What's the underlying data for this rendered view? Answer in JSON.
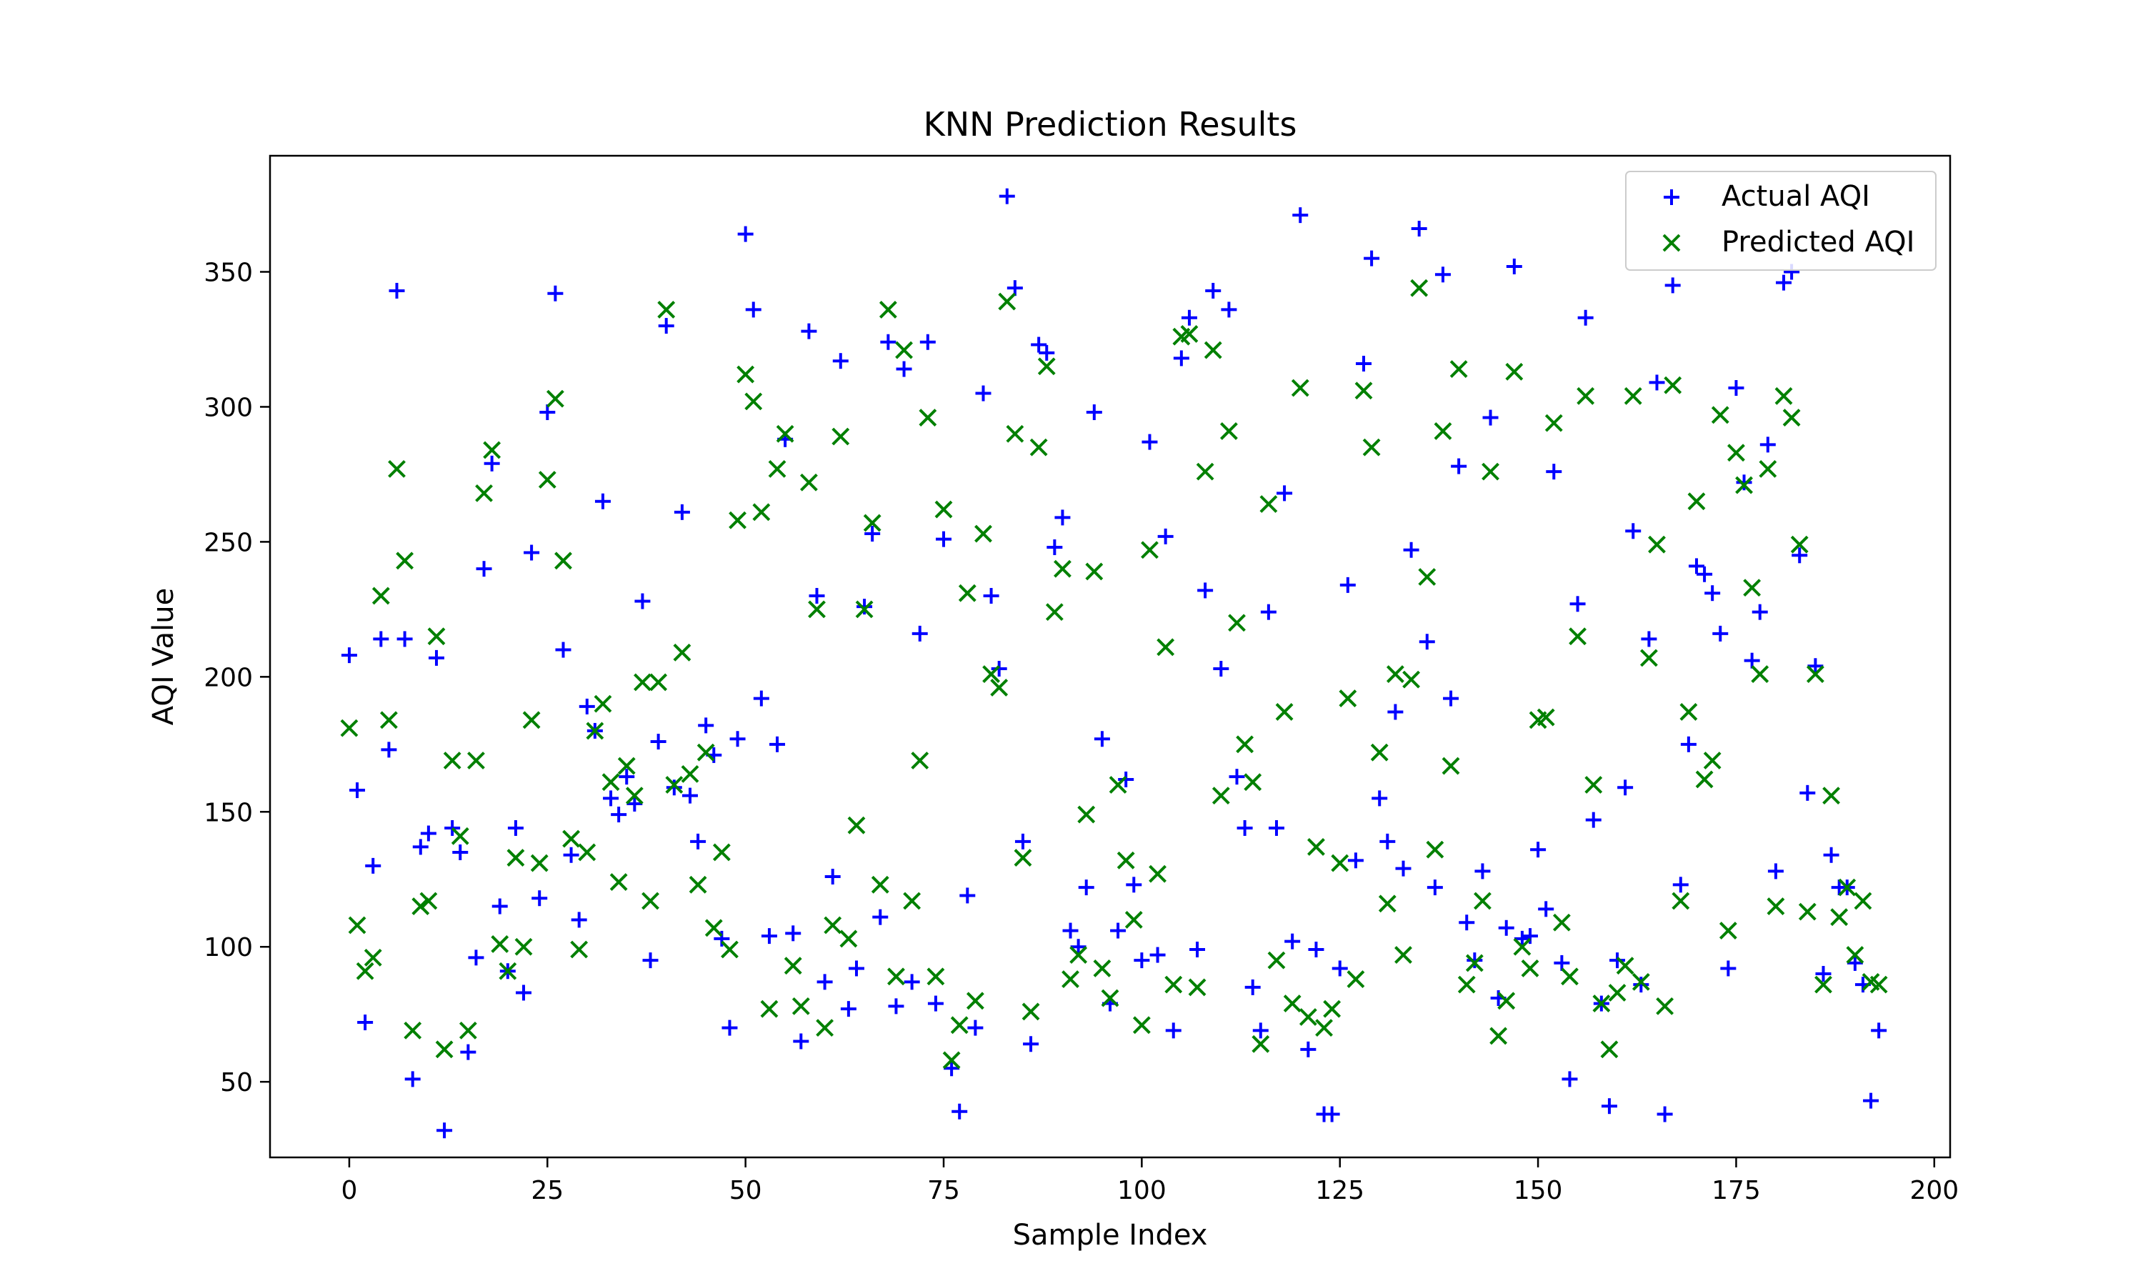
{
  "chart_data": {
    "type": "scatter",
    "title": "KNN Prediction Results",
    "xlabel": "Sample Index",
    "ylabel": "AQI Value",
    "xlim": [
      -10,
      202
    ],
    "ylim": [
      22,
      393
    ],
    "xticks": [
      0,
      25,
      50,
      75,
      100,
      125,
      150,
      175,
      200
    ],
    "yticks": [
      50,
      100,
      150,
      200,
      250,
      300,
      350
    ],
    "grid": false,
    "legend_position": "top-right",
    "series": [
      {
        "name": "Actual AQI",
        "marker": "plus",
        "color": "#0000ff",
        "x": [
          0,
          1,
          2,
          3,
          4,
          5,
          6,
          7,
          8,
          9,
          10,
          11,
          12,
          13,
          14,
          15,
          16,
          17,
          18,
          19,
          20,
          21,
          22,
          23,
          24,
          25,
          26,
          27,
          28,
          29,
          30,
          31,
          32,
          33,
          34,
          35,
          36,
          37,
          38,
          39,
          40,
          41,
          42,
          43,
          44,
          45,
          46,
          47,
          48,
          49,
          50,
          51,
          52,
          53,
          54,
          55,
          56,
          57,
          58,
          59,
          60,
          61,
          62,
          63,
          64,
          65,
          66,
          67,
          68,
          69,
          70,
          71,
          72,
          73,
          74,
          75,
          76,
          77,
          78,
          79,
          80,
          81,
          82,
          83,
          84,
          85,
          86,
          87,
          88,
          89,
          90,
          91,
          92,
          93,
          94,
          95,
          96,
          97,
          98,
          99,
          100,
          101,
          102,
          103,
          104,
          105,
          106,
          107,
          108,
          109,
          110,
          111,
          112,
          113,
          114,
          115,
          116,
          117,
          118,
          119,
          120,
          121,
          122,
          123,
          124,
          125,
          126,
          127,
          128,
          129,
          130,
          131,
          132,
          133,
          134,
          135,
          136,
          137,
          138,
          139,
          140,
          141,
          142,
          143,
          144,
          145,
          146,
          147,
          148,
          149,
          150,
          151,
          152,
          153,
          154,
          155,
          156,
          157,
          158,
          159,
          160,
          161,
          162,
          163,
          164,
          165,
          166,
          167,
          168,
          169,
          170,
          171,
          172,
          173,
          174,
          175,
          176,
          177,
          178,
          179,
          180,
          181,
          182,
          183,
          184,
          185,
          186,
          187,
          188,
          189,
          190,
          191,
          192,
          193
        ],
        "y": [
          208,
          158,
          72,
          130,
          214,
          173,
          343,
          214,
          51,
          137,
          142,
          207,
          32,
          144,
          135,
          61,
          96,
          240,
          279,
          115,
          91,
          144,
          83,
          246,
          118,
          298,
          342,
          210,
          134,
          110,
          189,
          180,
          265,
          155,
          149,
          163,
          153,
          228,
          95,
          176,
          330,
          159,
          261,
          156,
          139,
          182,
          171,
          103,
          70,
          177,
          364,
          336,
          192,
          104,
          175,
          288,
          105,
          65,
          328,
          230,
          87,
          126,
          317,
          77,
          92,
          226,
          253,
          111,
          324,
          78,
          314,
          87,
          216,
          324,
          79,
          251,
          55,
          39,
          119,
          70,
          305,
          230,
          203,
          378,
          344,
          139,
          64,
          323,
          320,
          248,
          259,
          106,
          100,
          122,
          298,
          177,
          79,
          106,
          162,
          123,
          95,
          287,
          97,
          252,
          69,
          318,
          333,
          99,
          232,
          343,
          203,
          336,
          163,
          144,
          85,
          69,
          224,
          144,
          268,
          102,
          371,
          62,
          99,
          38,
          38,
          92,
          234,
          132,
          316,
          355,
          155,
          139,
          187,
          129,
          247,
          366,
          213,
          122,
          349,
          192,
          278,
          109,
          95,
          128,
          296,
          81,
          107,
          352,
          103,
          104,
          136,
          114,
          276,
          94,
          51,
          227,
          333,
          147,
          79,
          41,
          95,
          159,
          254,
          86,
          214,
          309,
          38,
          345,
          123,
          175,
          241,
          238,
          231,
          216,
          92,
          307,
          272,
          206,
          224,
          286,
          128,
          346,
          350,
          245,
          157,
          204,
          90,
          134,
          122,
          122,
          94,
          86,
          43,
          69
        ]
      },
      {
        "name": "Predicted AQI",
        "marker": "x",
        "color": "#008000",
        "x": [
          0,
          1,
          2,
          3,
          4,
          5,
          6,
          7,
          8,
          9,
          10,
          11,
          12,
          13,
          14,
          15,
          16,
          17,
          18,
          19,
          20,
          21,
          22,
          23,
          24,
          25,
          26,
          27,
          28,
          29,
          30,
          31,
          32,
          33,
          34,
          35,
          36,
          37,
          38,
          39,
          40,
          41,
          42,
          43,
          44,
          45,
          46,
          47,
          48,
          49,
          50,
          51,
          52,
          53,
          54,
          55,
          56,
          57,
          58,
          59,
          60,
          61,
          62,
          63,
          64,
          65,
          66,
          67,
          68,
          69,
          70,
          71,
          72,
          73,
          74,
          75,
          76,
          77,
          78,
          79,
          80,
          81,
          82,
          83,
          84,
          85,
          86,
          87,
          88,
          89,
          90,
          91,
          92,
          93,
          94,
          95,
          96,
          97,
          98,
          99,
          100,
          101,
          102,
          103,
          104,
          105,
          106,
          107,
          108,
          109,
          110,
          111,
          112,
          113,
          114,
          115,
          116,
          117,
          118,
          119,
          120,
          121,
          122,
          123,
          124,
          125,
          126,
          127,
          128,
          129,
          130,
          131,
          132,
          133,
          134,
          135,
          136,
          137,
          138,
          139,
          140,
          141,
          142,
          143,
          144,
          145,
          146,
          147,
          148,
          149,
          150,
          151,
          152,
          153,
          154,
          155,
          156,
          157,
          158,
          159,
          160,
          161,
          162,
          163,
          164,
          165,
          166,
          167,
          168,
          169,
          170,
          171,
          172,
          173,
          174,
          175,
          176,
          177,
          178,
          179,
          180,
          181,
          182,
          183,
          184,
          185,
          186,
          187,
          188,
          189,
          190,
          191,
          192,
          193
        ],
        "y": [
          181,
          108,
          91,
          96,
          230,
          184,
          277,
          243,
          69,
          115,
          117,
          215,
          62,
          169,
          141,
          69,
          169,
          268,
          284,
          101,
          91,
          133,
          100,
          184,
          131,
          273,
          303,
          243,
          140,
          99,
          135,
          180,
          190,
          161,
          124,
          167,
          156,
          198,
          117,
          198,
          336,
          160,
          209,
          164,
          123,
          172,
          107,
          135,
          99,
          258,
          312,
          302,
          261,
          77,
          277,
          290,
          93,
          78,
          272,
          225,
          70,
          108,
          289,
          103,
          145,
          225,
          257,
          123,
          336,
          89,
          321,
          117,
          169,
          296,
          89,
          262,
          58,
          71,
          231,
          80,
          253,
          201,
          196,
          339,
          290,
          133,
          76,
          285,
          315,
          224,
          240,
          88,
          97,
          149,
          239,
          92,
          81,
          160,
          132,
          110,
          71,
          247,
          127,
          211,
          86,
          326,
          327,
          85,
          276,
          321,
          156,
          291,
          220,
          175,
          161,
          64,
          264,
          95,
          187,
          79,
          307,
          74,
          137,
          70,
          77,
          131,
          192,
          88,
          306,
          285,
          172,
          116,
          201,
          97,
          199,
          344,
          237,
          136,
          291,
          167,
          314,
          86,
          94,
          117,
          276,
          67,
          80,
          313,
          100,
          92,
          184,
          185,
          294,
          109,
          89,
          215,
          304,
          160,
          79,
          62,
          83,
          93,
          304,
          87,
          207,
          249,
          78,
          308,
          117,
          187,
          265,
          162,
          169,
          297,
          106,
          283,
          271,
          233,
          201,
          277,
          115,
          304,
          296,
          249,
          113,
          201,
          86,
          156,
          111,
          122,
          97,
          117,
          87,
          86
        ]
      }
    ]
  }
}
